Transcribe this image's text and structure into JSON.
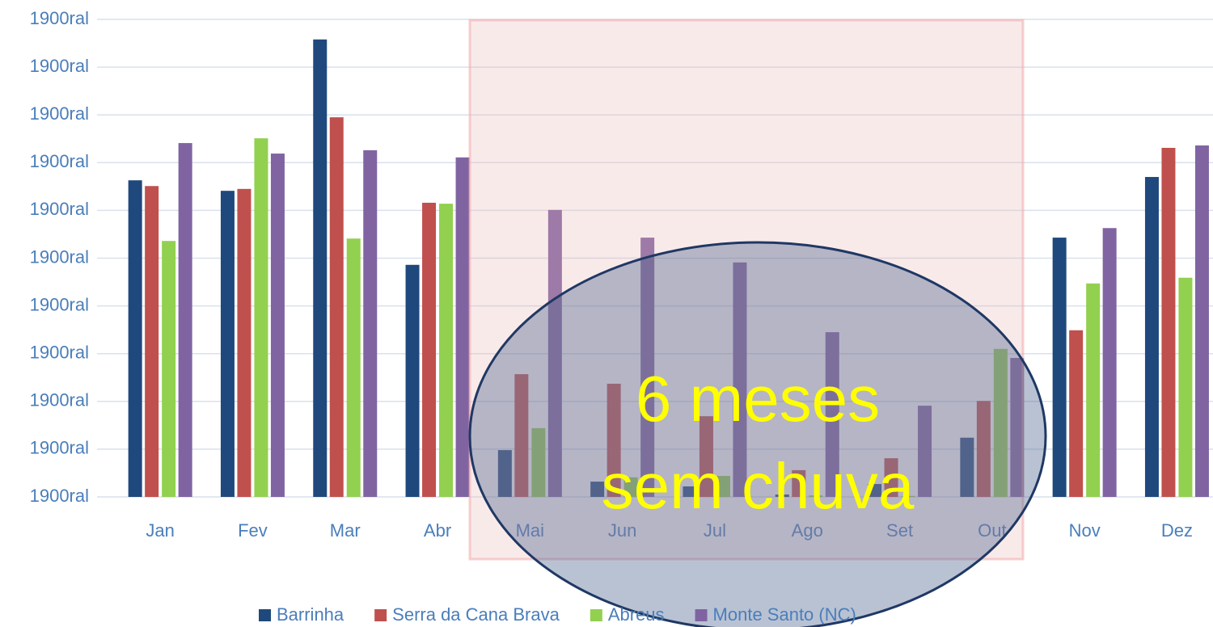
{
  "chart_data": {
    "type": "bar",
    "categories": [
      "Jan",
      "Fev",
      "Mar",
      "Abr",
      "Mai",
      "Jun",
      "Jul",
      "Ago",
      "Set",
      "Out",
      "Nov",
      "Dez"
    ],
    "series": [
      {
        "name": "Barrinha",
        "color": "#1f497d",
        "values": [
          6.63,
          6.41,
          9.58,
          4.86,
          0.98,
          0.32,
          0.22,
          0.05,
          0.27,
          1.24,
          5.43,
          6.7
        ]
      },
      {
        "name": "Serra da Cana Brava",
        "color": "#c0504d",
        "values": [
          6.51,
          6.45,
          7.95,
          6.16,
          2.57,
          2.37,
          1.69,
          0.56,
          0.81,
          2.01,
          3.49,
          7.31
        ]
      },
      {
        "name": "Abreus",
        "color": "#92d050",
        "values": [
          5.36,
          7.51,
          5.41,
          6.14,
          1.44,
          0.41,
          0.44,
          0.03,
          0.02,
          3.1,
          4.47,
          4.59
        ]
      },
      {
        "name": "Monte Santo (NC)",
        "color": "#8064a2",
        "values": [
          7.41,
          7.19,
          7.26,
          7.11,
          6.01,
          5.43,
          4.91,
          3.45,
          1.91,
          2.91,
          5.63,
          7.36
        ]
      }
    ],
    "ylim": [
      0,
      10
    ],
    "yticks": [
      {
        "value": 0,
        "label": "1900ral"
      },
      {
        "value": 1,
        "label": "1900ral"
      },
      {
        "value": 2,
        "label": "1900ral"
      },
      {
        "value": 3,
        "label": "1900ral"
      },
      {
        "value": 4,
        "label": "1900ral"
      },
      {
        "value": 5,
        "label": "1900ral"
      },
      {
        "value": 6,
        "label": "1900ral"
      },
      {
        "value": 7,
        "label": "1900ral"
      },
      {
        "value": 8,
        "label": "1900ral"
      },
      {
        "value": 9,
        "label": "1900ral"
      },
      {
        "value": 10,
        "label": "1900ral"
      }
    ],
    "grid": true,
    "legend": "bottom",
    "annotation": [
      "6 meses",
      "sem chuva"
    ]
  }
}
